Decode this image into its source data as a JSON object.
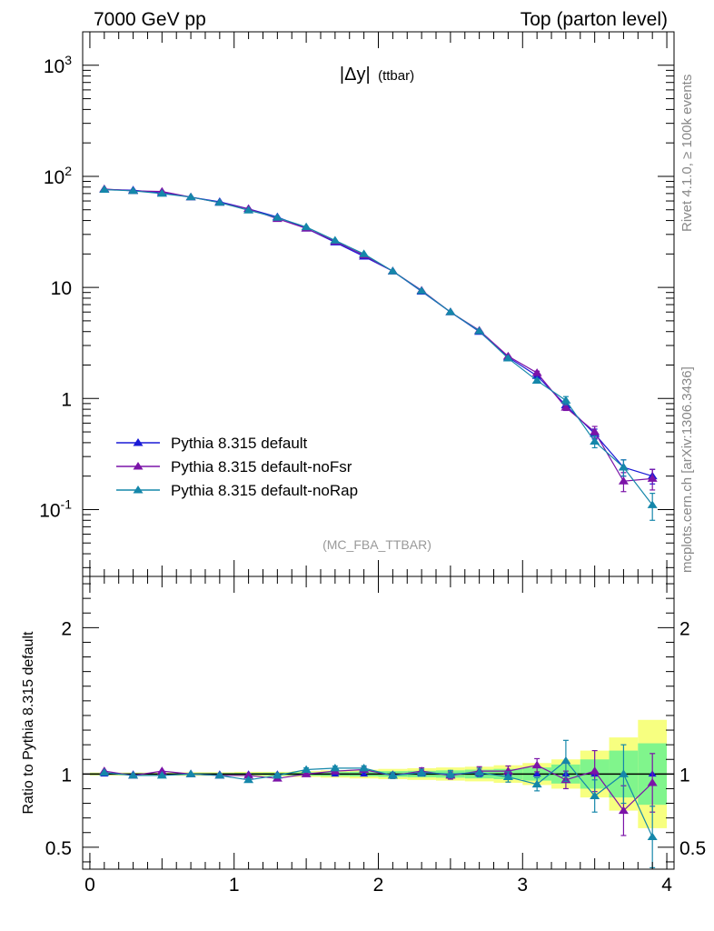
{
  "header": {
    "left_title": "7000 GeV pp",
    "right_title": "Top (parton level)"
  },
  "side_text": {
    "rivet": "Rivet 4.1.0, ≥ 100k events",
    "mcplots": "mcplots.cern.ch [arXiv:1306.3436]"
  },
  "colors": {
    "default": "#1a1ad6",
    "noFsr": "#7b13a8",
    "noRap": "#1587aa",
    "band_outer": "#f7ff80",
    "band_inner": "#80f58c"
  },
  "chart_data": [
    {
      "type": "line",
      "title": "|Δy| (ttbar)",
      "title_main": "|Δy|",
      "title_sub": "(ttbar)",
      "watermark": "(MC_FBA_TTBAR)",
      "yscale": "log",
      "xlim": [
        -0.05,
        4.05
      ],
      "ylim": [
        0.025,
        2000
      ],
      "ytick_labels": [
        "10^-1",
        "1",
        "10",
        "10^2",
        "10^3"
      ],
      "legend_position": "lower-left",
      "x": [
        0.1,
        0.3,
        0.5,
        0.7,
        0.9,
        1.1,
        1.3,
        1.5,
        1.7,
        1.9,
        2.1,
        2.3,
        2.5,
        2.7,
        2.9,
        3.1,
        3.3,
        3.5,
        3.7,
        3.9
      ],
      "series": [
        {
          "name": "Pythia 8.315 default",
          "values": [
            76,
            75,
            71,
            65,
            59,
            51,
            43,
            34,
            25.5,
            19,
            14,
            9.2,
            6.0,
            4.0,
            2.35,
            1.6,
            0.87,
            0.48,
            0.24,
            0.2
          ],
          "errors": [
            0.6,
            0.6,
            0.6,
            0.5,
            0.5,
            0.4,
            0.4,
            0.3,
            0.3,
            0.25,
            0.2,
            0.15,
            0.1,
            0.08,
            0.06,
            0.05,
            0.04,
            0.05,
            0.04,
            0.03
          ]
        },
        {
          "name": "Pythia 8.315 default-noFsr",
          "values": [
            77,
            74,
            73,
            65,
            58,
            51,
            41.5,
            34,
            26,
            19.5,
            14,
            9.4,
            6.0,
            4.1,
            2.4,
            1.7,
            0.83,
            0.5,
            0.18,
            0.19
          ],
          "errors": [
            0.6,
            0.6,
            0.6,
            0.5,
            0.5,
            0.4,
            0.4,
            0.3,
            0.3,
            0.25,
            0.2,
            0.15,
            0.1,
            0.08,
            0.06,
            0.06,
            0.05,
            0.06,
            0.035,
            0.04
          ]
        },
        {
          "name": "Pythia 8.315 default-noRap",
          "values": [
            76,
            74,
            70,
            65,
            58,
            49.5,
            42.5,
            35,
            26.5,
            20,
            14,
            9.3,
            6.0,
            4.05,
            2.3,
            1.45,
            0.96,
            0.41,
            0.24,
            0.11
          ],
          "errors": [
            0.6,
            0.6,
            0.6,
            0.5,
            0.5,
            0.4,
            0.4,
            0.3,
            0.3,
            0.25,
            0.2,
            0.15,
            0.1,
            0.08,
            0.06,
            0.05,
            0.08,
            0.05,
            0.04,
            0.03
          ]
        }
      ]
    },
    {
      "type": "line",
      "title": "",
      "xlabel": "",
      "ylabel": "Ratio to Pythia 8.315 default",
      "xlim": [
        -0.05,
        4.05
      ],
      "ylim": [
        0.35,
        2.35
      ],
      "xtick_labels": [
        "0",
        "1",
        "2",
        "3",
        "4"
      ],
      "ytick_labels": [
        "0.5",
        "1",
        "2"
      ],
      "reference_line": 1,
      "band_x_edges": [
        0.0,
        0.2,
        0.4,
        0.6,
        0.8,
        1.0,
        1.2,
        1.4,
        1.6,
        1.8,
        2.0,
        2.2,
        2.4,
        2.6,
        2.8,
        3.0,
        3.2,
        3.4,
        3.6,
        3.8,
        4.0
      ],
      "band_outer_halfwidth": [
        0.01,
        0.01,
        0.01,
        0.012,
        0.012,
        0.015,
        0.015,
        0.02,
        0.025,
        0.03,
        0.035,
        0.04,
        0.045,
        0.05,
        0.06,
        0.075,
        0.1,
        0.16,
        0.25,
        0.37
      ],
      "band_inner_halfwidth": [
        0.006,
        0.006,
        0.006,
        0.007,
        0.007,
        0.008,
        0.009,
        0.012,
        0.014,
        0.016,
        0.02,
        0.022,
        0.025,
        0.03,
        0.035,
        0.045,
        0.065,
        0.1,
        0.16,
        0.21
      ],
      "series": [
        {
          "name": "Pythia 8.315 default-noFsr",
          "values": [
            1.02,
            0.99,
            1.02,
            1.0,
            0.99,
            0.99,
            0.97,
            1.0,
            1.02,
            1.03,
            0.99,
            1.02,
            0.99,
            1.02,
            1.02,
            1.06,
            0.96,
            1.02,
            0.75,
            0.94
          ],
          "errors": [
            0.008,
            0.008,
            0.008,
            0.008,
            0.01,
            0.01,
            0.012,
            0.012,
            0.014,
            0.016,
            0.02,
            0.022,
            0.025,
            0.03,
            0.035,
            0.045,
            0.06,
            0.14,
            0.17,
            0.2
          ]
        },
        {
          "name": "Pythia 8.315 default-noRap",
          "values": [
            1.01,
            0.99,
            0.99,
            1.0,
            0.99,
            0.96,
            0.99,
            1.03,
            1.04,
            1.04,
            0.99,
            1.01,
            1.0,
            1.01,
            0.98,
            0.93,
            1.09,
            0.85,
            1.0,
            0.57
          ],
          "errors": [
            0.008,
            0.008,
            0.008,
            0.008,
            0.01,
            0.01,
            0.012,
            0.012,
            0.014,
            0.016,
            0.02,
            0.022,
            0.025,
            0.03,
            0.035,
            0.045,
            0.14,
            0.11,
            0.2,
            0.21
          ]
        }
      ]
    }
  ]
}
